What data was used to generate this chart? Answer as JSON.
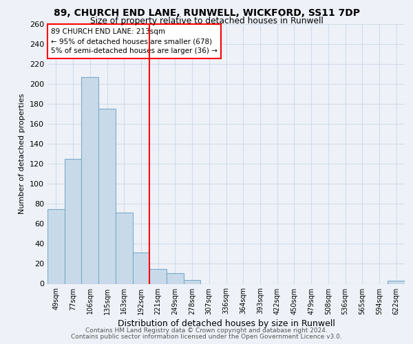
{
  "title1": "89, CHURCH END LANE, RUNWELL, WICKFORD, SS11 7DP",
  "title2": "Size of property relative to detached houses in Runwell",
  "xlabel": "Distribution of detached houses by size in Runwell",
  "ylabel": "Number of detached properties",
  "categories": [
    "49sqm",
    "77sqm",
    "106sqm",
    "135sqm",
    "163sqm",
    "192sqm",
    "221sqm",
    "249sqm",
    "278sqm",
    "307sqm",
    "336sqm",
    "364sqm",
    "393sqm",
    "422sqm",
    "450sqm",
    "479sqm",
    "508sqm",
    "536sqm",
    "565sqm",
    "594sqm",
    "622sqm"
  ],
  "values": [
    75,
    125,
    207,
    175,
    71,
    31,
    15,
    11,
    4,
    0,
    0,
    0,
    0,
    0,
    0,
    0,
    0,
    0,
    0,
    0,
    3
  ],
  "bar_color": "#c8daea",
  "bar_edge_color": "#7aaac8",
  "red_line_x": 6.0,
  "annotation_title": "89 CHURCH END LANE: 213sqm",
  "annotation_line1": "← 95% of detached houses are smaller (678)",
  "annotation_line2": "5% of semi-detached houses are larger (36) →",
  "ylim_max": 260,
  "yticks": [
    0,
    20,
    40,
    60,
    80,
    100,
    120,
    140,
    160,
    180,
    200,
    220,
    240,
    260
  ],
  "background_color": "#eef2f8",
  "grid_color": "#d0dcea",
  "footer_line1": "Contains HM Land Registry data © Crown copyright and database right 2024.",
  "footer_line2": "Contains public sector information licensed under the Open Government Licence v3.0."
}
